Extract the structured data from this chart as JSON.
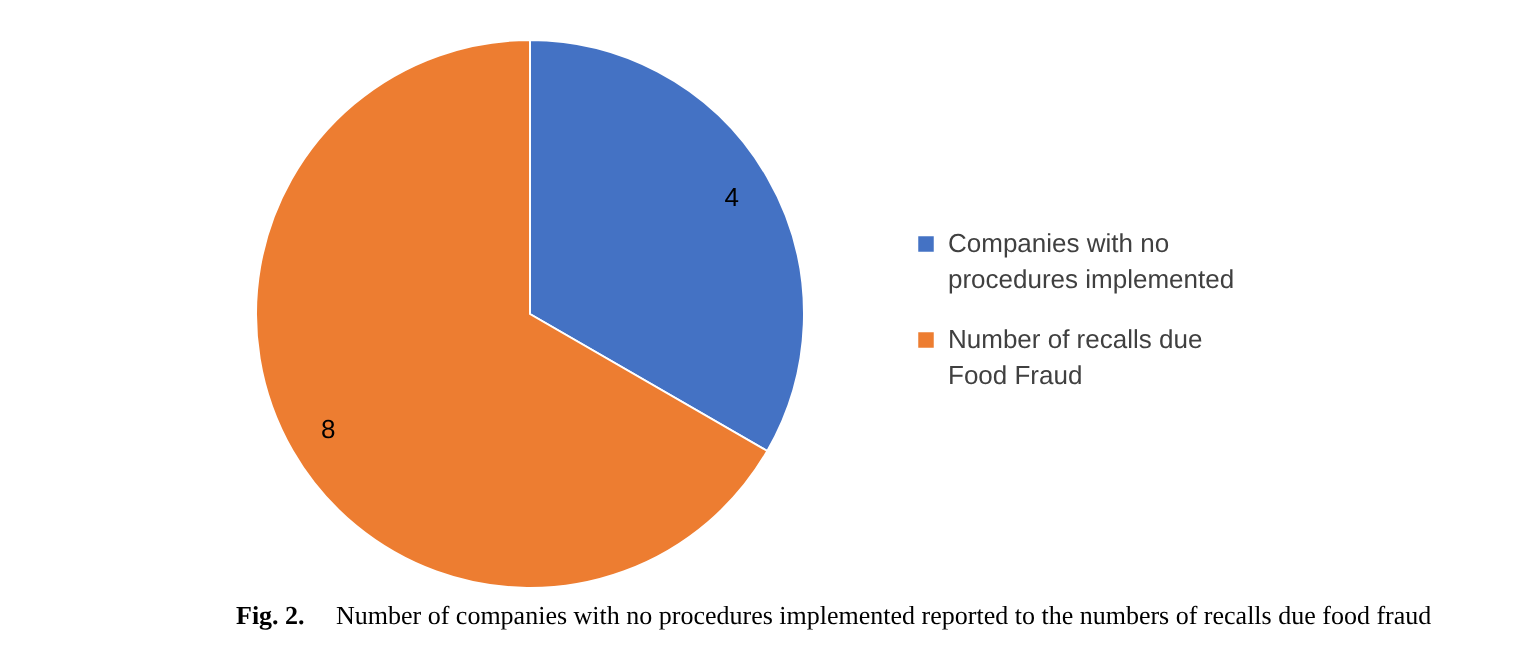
{
  "chart_data": {
    "type": "pie",
    "title": "Fig. 2.",
    "annotations": [
      "Number of companies with no procedures implemented reported to the numbers of recalls due food fraud"
    ],
    "categories": [
      "Companies with no procedures implemented",
      "Number of recalls due Food Fraud"
    ],
    "values": [
      4,
      8
    ],
    "colors": [
      "#4472c4",
      "#ed7d31"
    ],
    "data_labels": true,
    "legend": "right"
  }
}
